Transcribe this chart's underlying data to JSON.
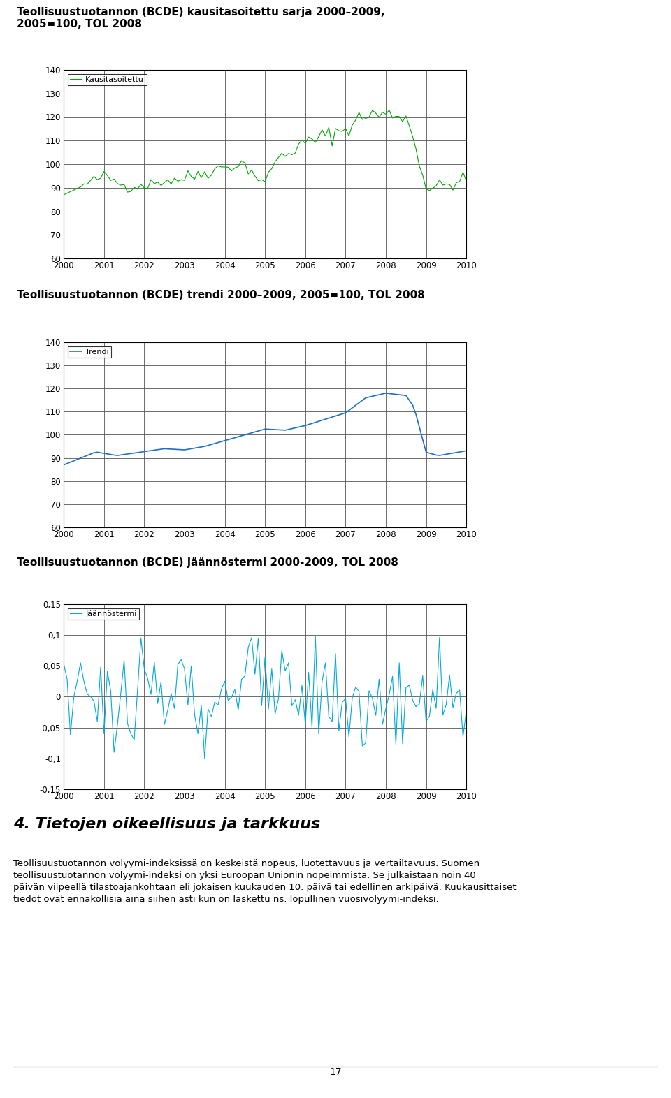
{
  "title1": "Teollisuustuotannon (BCDE) kausitasoitettu sarja 2000–2009,\n2005=100, TOL 2008",
  "title2": "Teollisuustuotannon (BCDE) trendi 2000–2009, 2005=100, TOL 2008",
  "title3": "Teollisuustuotannon (BCDE) jäännöstermi 2000-2009, TOL 2008",
  "legend1": "Kausitasoitettu",
  "legend2": "Trendi",
  "legend3": "Jäännöstermi",
  "color1": "#00aa00",
  "color2": "#1e6ec8",
  "color3": "#00aadd",
  "ylim1": [
    60,
    140
  ],
  "ylim2": [
    60,
    140
  ],
  "ylim3": [
    -0.15,
    0.15
  ],
  "yticks1": [
    60,
    70,
    80,
    90,
    100,
    110,
    120,
    130,
    140
  ],
  "yticks2": [
    60,
    70,
    80,
    90,
    100,
    110,
    120,
    130,
    140
  ],
  "yticks3": [
    -0.15,
    -0.1,
    -0.05,
    0,
    0.05,
    0.1,
    0.15
  ],
  "ytick_labels3": [
    "-0,15",
    "-0,1",
    "-0,05",
    "0",
    "0,05",
    "0,1",
    "0,15"
  ],
  "xtick_labels": [
    "2000",
    "2001",
    "2002",
    "2003",
    "2004",
    "2005",
    "2006",
    "2007",
    "2008",
    "2009",
    "2010"
  ],
  "section_heading": "4. Tietojen oikeellisuus ja tarkkuus",
  "text_para": "Teollisuustuotannon volyymi-indeksissä on keskeistä nopeus, luotettavuus ja vertailtavuus. Suomen\nteollisuustuotannon volyymi-indeksi on yksi Euroopan Unionin nopeimmista. Se julkaistaan noin 40\npäivän viipeellä tilastoajankohtaan eli jokaisen kuukauden 10. päivä tai edellinen arkipäivä. Kuukausittaiset\ntiedot ovat ennakollisia aina siihen asti kun on laskettu ns. lopullinen vuosivolyymi-indeksi.",
  "page_number": "17"
}
